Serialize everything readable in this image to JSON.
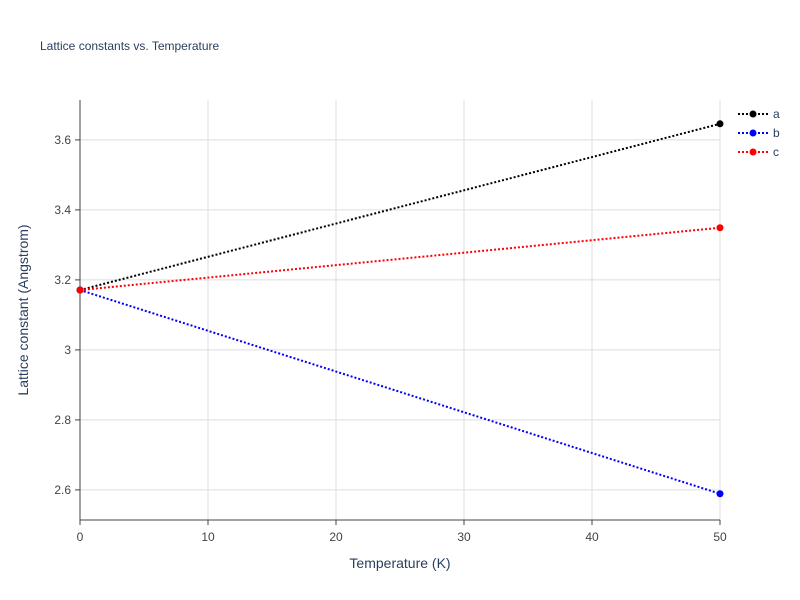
{
  "chart_data": {
    "type": "line",
    "title": "Lattice constants vs. Temperature",
    "xlabel": "Temperature (K)",
    "ylabel": "Lattice constant (Angstrom)",
    "x": [
      0,
      50
    ],
    "series": [
      {
        "name": "a",
        "color": "#000000",
        "values": [
          3.171,
          3.646
        ]
      },
      {
        "name": "b",
        "color": "#0000ff",
        "values": [
          3.171,
          2.589
        ]
      },
      {
        "name": "c",
        "color": "#ff0000",
        "values": [
          3.171,
          3.349
        ]
      }
    ],
    "xlim": [
      0,
      50
    ],
    "xticks": [
      0,
      10,
      20,
      30,
      40,
      50
    ],
    "ylim": [
      2.514,
      3.714
    ],
    "yticks": [
      2.6,
      2.8,
      3,
      3.2,
      3.4,
      3.6
    ],
    "grid": true,
    "legend": "top-right"
  }
}
